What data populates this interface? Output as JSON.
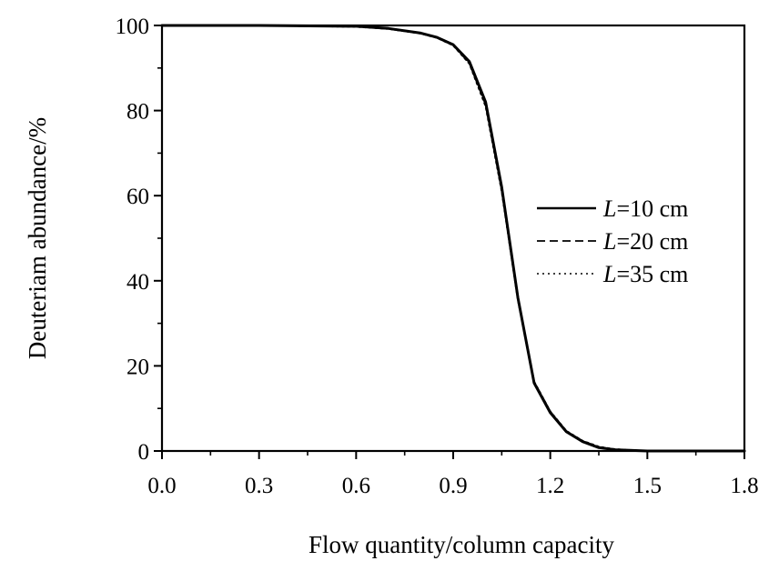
{
  "chart_data": {
    "type": "line",
    "title": "",
    "xlabel": "Flow quantity/column capacity",
    "ylabel": "Deuteriam abundance/%",
    "xlim": [
      0.0,
      1.8
    ],
    "ylim": [
      0,
      100
    ],
    "x_ticks": [
      "0.0",
      "0.3",
      "0.6",
      "0.9",
      "1.2",
      "1.5",
      "1.8"
    ],
    "y_ticks": [
      "0",
      "20",
      "40",
      "60",
      "80",
      "100"
    ],
    "grid": false,
    "legend_placement": "right-center",
    "series": [
      {
        "name": "L=10 cm",
        "legend_italic": "L",
        "legend_rest": "=10 cm",
        "style": "solid",
        "x": [
          0.0,
          0.3,
          0.6,
          0.7,
          0.8,
          0.85,
          0.9,
          0.95,
          1.0,
          1.05,
          1.1,
          1.15,
          1.2,
          1.25,
          1.3,
          1.35,
          1.4,
          1.5,
          1.8
        ],
        "y": [
          100,
          100,
          99.8,
          99.3,
          98.2,
          97.2,
          95.5,
          91.5,
          82,
          62,
          36,
          16,
          9,
          4.5,
          2.2,
          0.8,
          0.3,
          0,
          0
        ]
      },
      {
        "name": "L=20 cm",
        "legend_italic": "L",
        "legend_rest": "=20 cm",
        "style": "dashed",
        "x": [
          0.0,
          0.3,
          0.6,
          0.7,
          0.8,
          0.85,
          0.9,
          0.95,
          1.0,
          1.05,
          1.1,
          1.15,
          1.2,
          1.25,
          1.3,
          1.35,
          1.4,
          1.5,
          1.8
        ],
        "y": [
          100,
          100,
          99.8,
          99.2,
          98.2,
          97.2,
          95.4,
          91.2,
          81.5,
          61.5,
          36,
          16.2,
          9.2,
          4.6,
          2.3,
          0.9,
          0.3,
          0,
          0
        ]
      },
      {
        "name": "L=35 cm",
        "legend_italic": "L",
        "legend_rest": "=35 cm",
        "style": "dotted",
        "x": [
          0.0,
          0.3,
          0.6,
          0.7,
          0.8,
          0.85,
          0.9,
          0.95,
          1.0,
          1.05,
          1.1,
          1.15,
          1.2,
          1.25,
          1.3,
          1.35,
          1.4,
          1.5,
          1.8
        ],
        "y": [
          100,
          100,
          99.7,
          99.2,
          98.1,
          97.1,
          95.3,
          91,
          81,
          61,
          35.5,
          16.3,
          9.3,
          4.7,
          2.4,
          1.0,
          0.4,
          0,
          0
        ]
      }
    ]
  }
}
